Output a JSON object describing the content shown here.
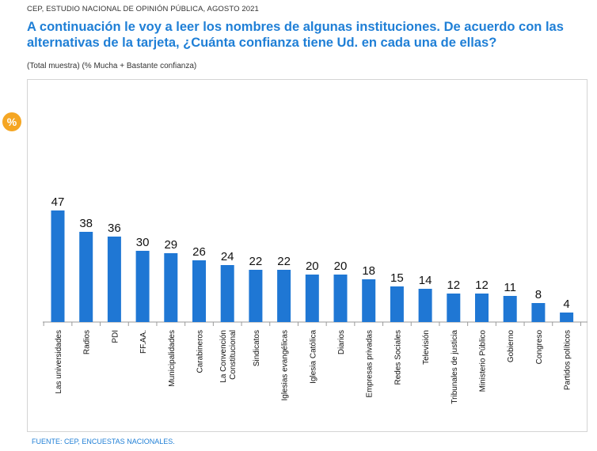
{
  "header": {
    "source_line": "CEP, ESTUDIO NACIONAL DE OPINIÓN PÚBLICA, AGOSTO 2021",
    "title": "A continuación le voy a leer los nombres de algunas instituciones. De acuerdo con las alternativas de la tarjeta, ¿Cuánta confianza tiene Ud. en cada una de ellas?",
    "subtitle": "(Total muestra) (% Mucha + Bastante confianza)"
  },
  "badge": {
    "label": "%",
    "icon": "percent-icon",
    "color": "#f5a623"
  },
  "footer": {
    "text": "FUENTE: CEP, ENCUESTAS NACIONALES."
  },
  "colors": {
    "bar": "#1f77d4",
    "title": "#1f7fd6"
  },
  "chart_data": {
    "type": "bar",
    "title": "",
    "xlabel": "",
    "ylabel": "",
    "ylim": [
      0,
      50
    ],
    "grid": false,
    "legend": "none",
    "categories": [
      [
        "Las universidades"
      ],
      [
        "Radios"
      ],
      [
        "PDI"
      ],
      [
        "FF.AA."
      ],
      [
        "Municipalidades"
      ],
      [
        "Carabineros"
      ],
      [
        "La Convención",
        "Constitucional"
      ],
      [
        "Sindicatos"
      ],
      [
        "Iglesias evangélicas"
      ],
      [
        "Iglesia Católica"
      ],
      [
        "Diarios"
      ],
      [
        "Empresas privadas"
      ],
      [
        "Redes Sociales"
      ],
      [
        "Televisión"
      ],
      [
        "Tribunales de justicia"
      ],
      [
        "Ministerio Público"
      ],
      [
        "Gobierno"
      ],
      [
        "Congreso"
      ],
      [
        "Partidos políticos"
      ]
    ],
    "values": [
      47,
      38,
      36,
      30,
      29,
      26,
      24,
      22,
      22,
      20,
      20,
      18,
      15,
      14,
      12,
      12,
      11,
      8,
      4
    ]
  }
}
